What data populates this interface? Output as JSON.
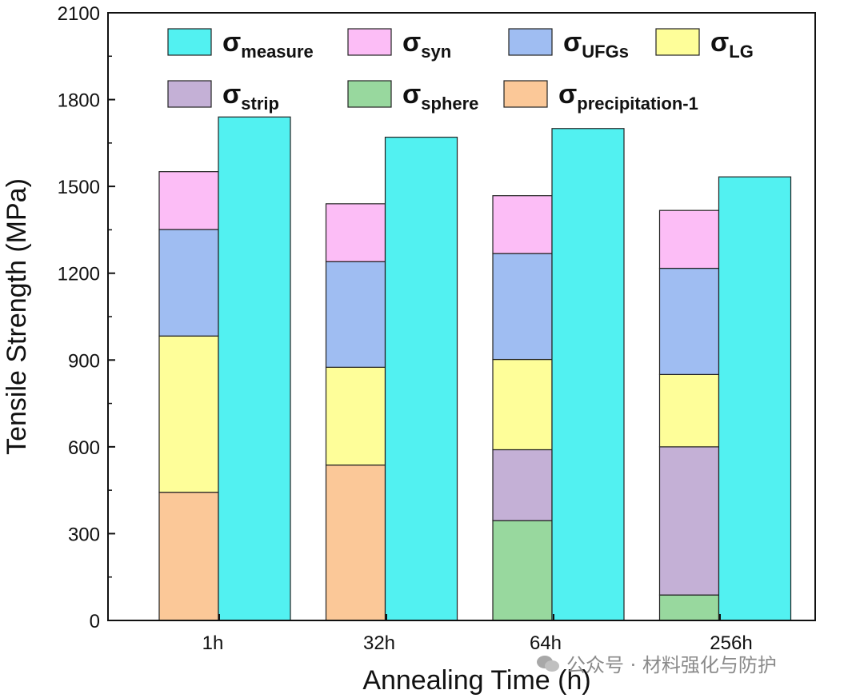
{
  "chart_data": {
    "type": "bar",
    "stacked_with_side_bar": true,
    "xlabel": "Annealing Time (h)",
    "ylabel": "Tensile Strength (MPa)",
    "ylim": [
      0,
      2100
    ],
    "yticks": [
      0,
      300,
      600,
      900,
      1200,
      1500,
      1800,
      2100
    ],
    "categories": [
      "1h",
      "32h",
      "64h",
      "256h"
    ],
    "stacked_series": [
      {
        "key": "precipitation",
        "symbol": "σ",
        "sub": "precipitation-1",
        "color": "#FBC898",
        "values": [
          443,
          537,
          0,
          0
        ]
      },
      {
        "key": "sphere",
        "symbol": "σ",
        "sub": "sphere",
        "color": "#98D89E",
        "values": [
          0,
          0,
          345,
          88
        ]
      },
      {
        "key": "strip",
        "symbol": "σ",
        "sub": "strip",
        "color": "#C4B0D6",
        "values": [
          0,
          0,
          245,
          512
        ]
      },
      {
        "key": "LG",
        "symbol": "σ",
        "sub": "LG",
        "color": "#FEFE99",
        "values": [
          540,
          338,
          312,
          250
        ]
      },
      {
        "key": "UFGs",
        "symbol": "σ",
        "sub": "UFGs",
        "color": "#9FBDF2",
        "values": [
          368,
          365,
          366,
          367
        ]
      },
      {
        "key": "syn",
        "symbol": "σ",
        "sub": "syn",
        "color": "#FCBDF6",
        "values": [
          200,
          200,
          200,
          200
        ]
      }
    ],
    "measured_series": {
      "key": "measure",
      "symbol": "σ",
      "sub": "measure",
      "color": "#52F1F1",
      "values": [
        1740,
        1670,
        1700,
        1533
      ]
    },
    "legend": {
      "position": "top",
      "rows": [
        [
          "measure",
          "syn",
          "UFGs",
          "LG"
        ],
        [
          "strip",
          "sphere",
          "precipitation"
        ]
      ]
    }
  },
  "watermark": {
    "text": "公众号 · 材料强化与防护"
  }
}
